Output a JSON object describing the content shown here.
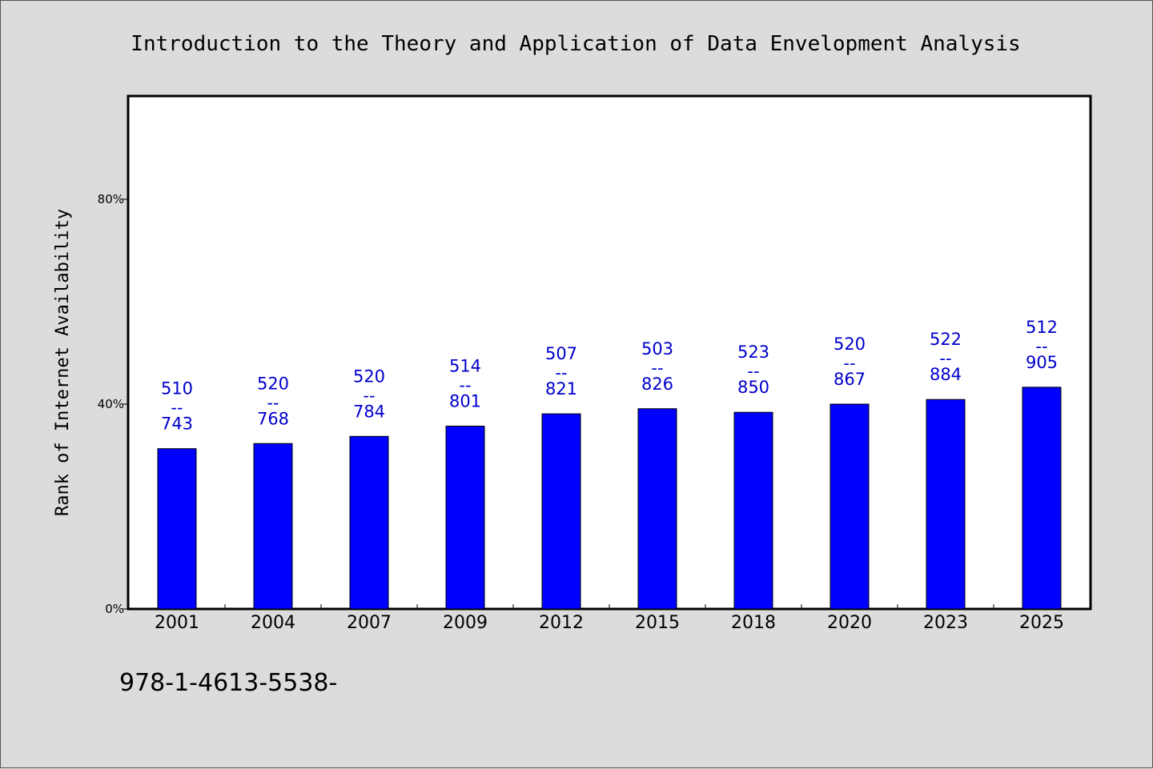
{
  "chart_data": {
    "type": "bar",
    "title": "Introduction to the Theory and Application of Data Envelopment Analysis",
    "ylabel": "Rank of Internet Availability",
    "xlabel": "",
    "footer_text": "978-1-4613-5538-",
    "categories": [
      "2001",
      "2004",
      "2007",
      "2009",
      "2012",
      "2015",
      "2018",
      "2020",
      "2023",
      "2025"
    ],
    "values": [
      31.3,
      32.3,
      33.7,
      35.7,
      38.1,
      39.1,
      38.4,
      40.0,
      40.9,
      43.3
    ],
    "data_labels": [
      {
        "top": "510",
        "mid": "--",
        "bottom": "743"
      },
      {
        "top": "520",
        "mid": "--",
        "bottom": "768"
      },
      {
        "top": "520",
        "mid": "--",
        "bottom": "784"
      },
      {
        "top": "514",
        "mid": "--",
        "bottom": "801"
      },
      {
        "top": "507",
        "mid": "--",
        "bottom": "821"
      },
      {
        "top": "503",
        "mid": "--",
        "bottom": "826"
      },
      {
        "top": "523",
        "mid": "--",
        "bottom": "850"
      },
      {
        "top": "520",
        "mid": "--",
        "bottom": "867"
      },
      {
        "top": "522",
        "mid": "--",
        "bottom": "884"
      },
      {
        "top": "512",
        "mid": "--",
        "bottom": "905"
      }
    ],
    "yticks": [
      {
        "value": 0,
        "label": "0%"
      },
      {
        "value": 40,
        "label": "40%"
      },
      {
        "value": 80,
        "label": "80%"
      }
    ],
    "ylim": [
      0,
      100
    ],
    "grid": false,
    "legend": "none",
    "colors": {
      "bar": "#0000ff",
      "data_label": "#0000cc",
      "page_background": "#dcdcdc",
      "plot_background": "#ffffff",
      "axis": "#000000"
    }
  }
}
